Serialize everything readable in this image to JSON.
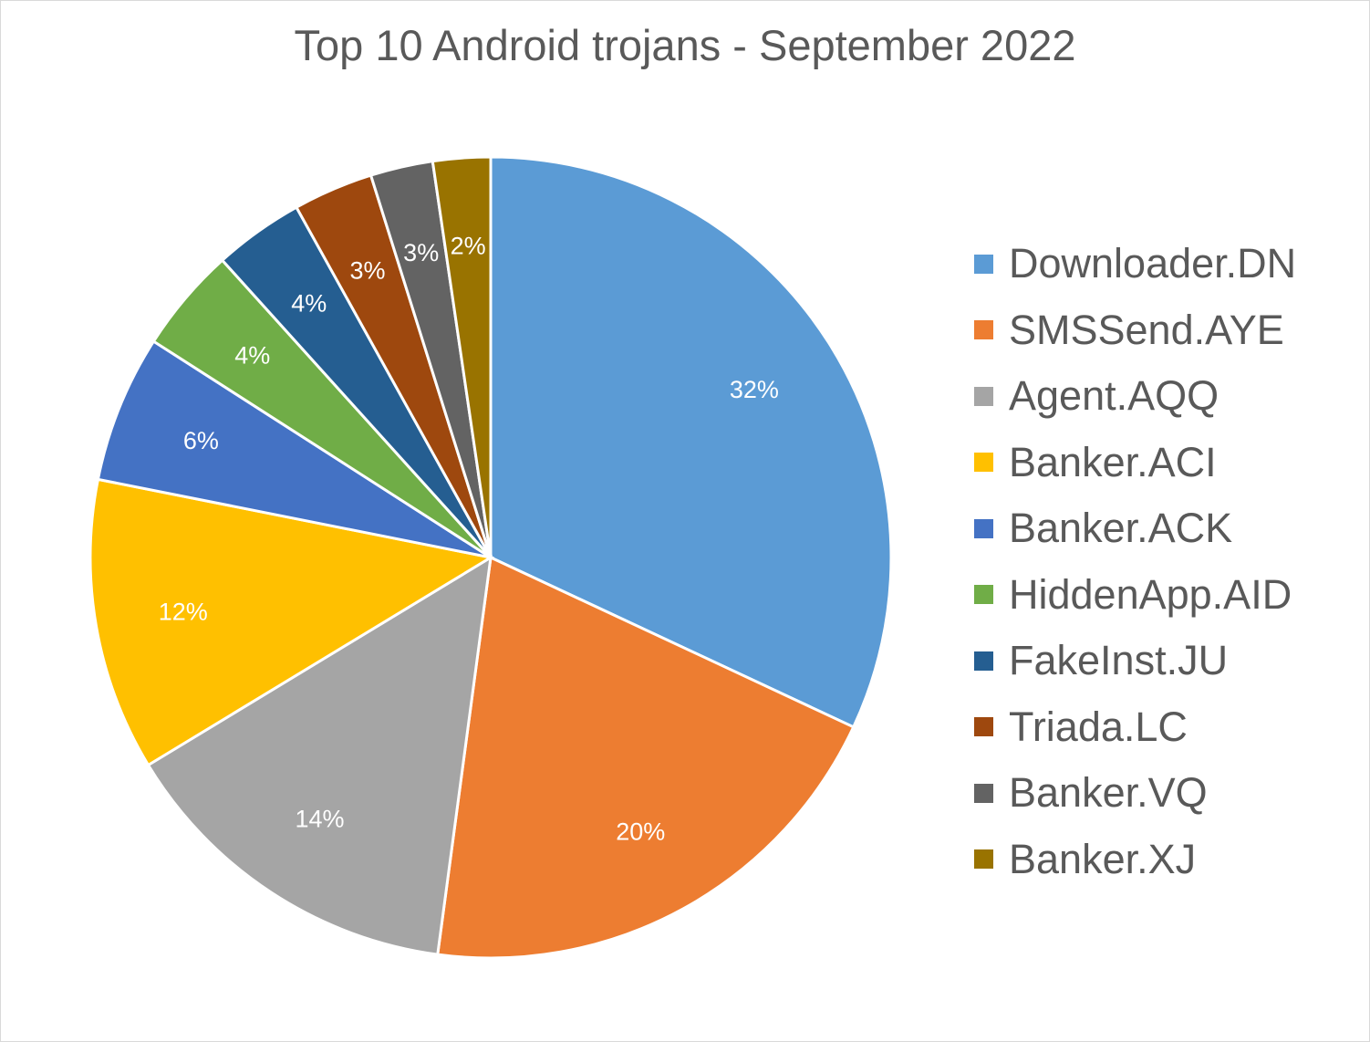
{
  "chart_data": {
    "type": "pie",
    "title": "Top 10 Android trojans - September 2022",
    "categories": [
      "Downloader.DN",
      "SMSSend.AYE",
      "Agent.AQQ",
      "Banker.ACI",
      "Banker.ACK",
      "HiddenApp.AID",
      "FakeInst.JU",
      "Triada.LC",
      "Banker.VQ",
      "Banker.XJ"
    ],
    "values": [
      31.7,
      20.0,
      14.1,
      11.7,
      5.9,
      4.2,
      3.6,
      3.2,
      2.5,
      2.3
    ],
    "data_labels": [
      "32%",
      "20%",
      "14%",
      "12%",
      "6%",
      "4%",
      "4%",
      "3%",
      "3%",
      "2%"
    ],
    "colors": [
      "#5b9bd5",
      "#ed7d31",
      "#a5a5a5",
      "#ffc000",
      "#4472c4",
      "#70ad47",
      "#255e91",
      "#9e480e",
      "#636363",
      "#997300"
    ],
    "legend_position": "right"
  }
}
